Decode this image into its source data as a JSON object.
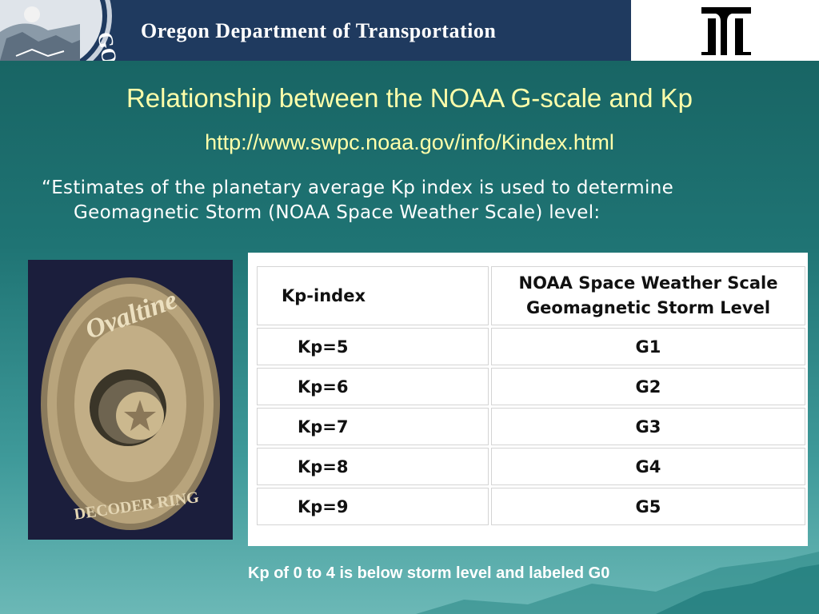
{
  "header": {
    "agency": "Oregon Department of Transportation",
    "seal_text": "GON",
    "logo_icon": "odot-logo-icon",
    "seal_icon": "oregon-state-seal-icon"
  },
  "slide": {
    "title": "Relationship between the NOAA G-scale and Kp",
    "url": "http://www.swpc.noaa.gov/info/Kindex.html",
    "quote": "“Estimates of the planetary average Kp index is used to determine Geomagnetic Storm (NOAA Space Weather Scale) level:",
    "image_icon": "decoder-ring-photo",
    "ring_text": "Ovaltine",
    "ring_bottom_text": "DECODER RING",
    "note": "Kp of 0 to 4 is below storm level and labeled  G0"
  },
  "table": {
    "header_kp": "Kp-index",
    "header_scale_1": "NOAA Space Weather Scale",
    "header_scale_2": "Geomagnetic Storm Level",
    "rows": [
      {
        "kp": "Kp=5",
        "g": "G1"
      },
      {
        "kp": "Kp=6",
        "g": "G2"
      },
      {
        "kp": "Kp=7",
        "g": "G3"
      },
      {
        "kp": "Kp=8",
        "g": "G4"
      },
      {
        "kp": "Kp=9",
        "g": "G5"
      }
    ]
  },
  "colors": {
    "header_bg": "#1f3a5f",
    "title": "#ffffaa",
    "background": "#1f7474"
  }
}
